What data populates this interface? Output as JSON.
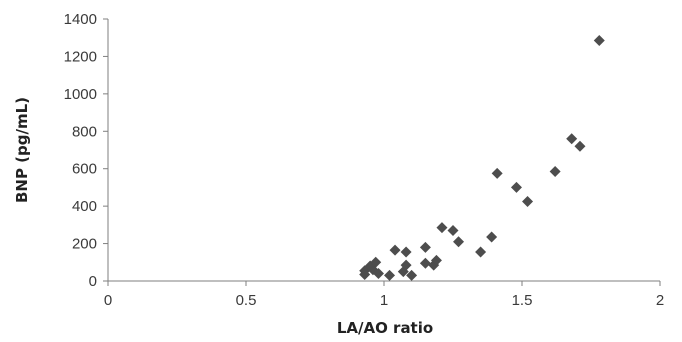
{
  "chart_data": {
    "type": "scatter",
    "title": "",
    "xlabel": "LA/AO ratio",
    "ylabel": "BNP (pg/mL)",
    "xlim": [
      0,
      2
    ],
    "ylim": [
      0,
      1400
    ],
    "xticks": [
      0,
      0.5,
      1,
      1.5,
      2
    ],
    "xtick_labels": [
      "0",
      "0.5",
      "1",
      "1.5",
      "2"
    ],
    "yticks": [
      0,
      200,
      400,
      600,
      800,
      1000,
      1200,
      1400
    ],
    "ytick_labels": [
      "0",
      "200",
      "400",
      "600",
      "800",
      "1000",
      "1200",
      "1400"
    ],
    "grid": false,
    "legend": "none",
    "marker": "diamond",
    "marker_color": "#4d4d4d",
    "series": [
      {
        "points": [
          [
            0.93,
            55
          ],
          [
            0.93,
            35
          ],
          [
            0.95,
            80
          ],
          [
            0.96,
            60
          ],
          [
            0.97,
            100
          ],
          [
            0.98,
            40
          ],
          [
            1.02,
            30
          ],
          [
            1.04,
            165
          ],
          [
            1.07,
            50
          ],
          [
            1.08,
            85
          ],
          [
            1.08,
            155
          ],
          [
            1.1,
            30
          ],
          [
            1.15,
            180
          ],
          [
            1.15,
            95
          ],
          [
            1.18,
            85
          ],
          [
            1.19,
            110
          ],
          [
            1.21,
            285
          ],
          [
            1.25,
            270
          ],
          [
            1.27,
            210
          ],
          [
            1.35,
            155
          ],
          [
            1.39,
            235
          ],
          [
            1.41,
            575
          ],
          [
            1.48,
            500
          ],
          [
            1.52,
            425
          ],
          [
            1.62,
            585
          ],
          [
            1.68,
            760
          ],
          [
            1.71,
            720
          ],
          [
            1.78,
            1285
          ]
        ]
      }
    ]
  }
}
